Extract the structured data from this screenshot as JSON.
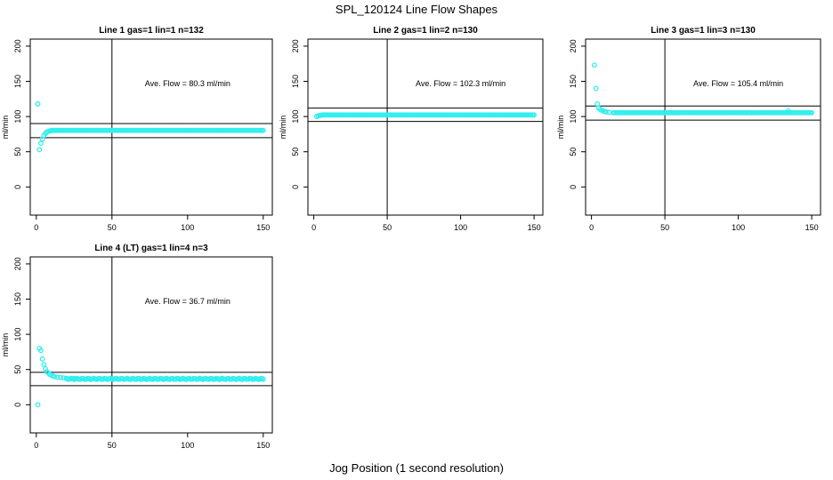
{
  "title": "SPL_120124  Line Flow Shapes",
  "x_caption": "Jog Position (1 second resolution)",
  "colors": {
    "points": "#33eeee",
    "lines": "#000000"
  },
  "chart_data": [
    {
      "type": "scatter",
      "title": "Line 1 gas=1 lin=1 n=132",
      "ylabel": "ml/min",
      "annotation": "Ave. Flow =  80.3  ml/min",
      "xlim": [
        -4,
        156
      ],
      "ylim": [
        -40,
        210
      ],
      "xticks": [
        0,
        50,
        100,
        150
      ],
      "yticks": [
        0,
        50,
        100,
        150,
        200
      ],
      "hlines": [
        90,
        70
      ],
      "vline": 50,
      "points": [
        [
          1,
          118
        ],
        [
          2,
          53
        ],
        [
          3,
          62
        ],
        [
          4,
          68
        ],
        [
          5,
          73
        ],
        [
          6,
          76
        ],
        [
          7,
          78
        ],
        [
          8,
          79
        ],
        [
          9,
          79.5
        ],
        [
          10,
          80
        ],
        [
          12,
          80.2
        ],
        [
          15,
          80.3
        ],
        [
          20,
          80.3
        ],
        [
          30,
          80.3
        ],
        [
          40,
          80.3
        ],
        [
          60,
          80.3
        ],
        [
          80,
          80.3
        ],
        [
          100,
          80.3
        ],
        [
          120,
          80.3
        ],
        [
          140,
          80.3
        ],
        [
          149,
          80.3
        ]
      ],
      "plateau": {
        "from": 10,
        "to": 150,
        "y": 80.3
      }
    },
    {
      "type": "scatter",
      "title": "Line 2 gas=1 lin=2 n=130",
      "ylabel": "ml/min",
      "annotation": "Ave. Flow =  102.3  ml/min",
      "xlim": [
        -4,
        156
      ],
      "ylim": [
        -40,
        210
      ],
      "xticks": [
        0,
        50,
        100,
        150
      ],
      "yticks": [
        0,
        50,
        100,
        150,
        200
      ],
      "hlines": [
        112,
        93
      ],
      "vline": 50,
      "points": [
        [
          2,
          100
        ],
        [
          3,
          101
        ],
        [
          4,
          101.5
        ],
        [
          5,
          102
        ],
        [
          6,
          102.2
        ],
        [
          8,
          102.3
        ],
        [
          149,
          102.3
        ]
      ],
      "plateau": {
        "from": 6,
        "to": 150,
        "y": 102.3
      }
    },
    {
      "type": "scatter",
      "title": "Line 3 gas=1 lin=3 n=130",
      "ylabel": "ml/min",
      "annotation": "Ave. Flow =  105.4  ml/min",
      "xlim": [
        -4,
        156
      ],
      "ylim": [
        -40,
        210
      ],
      "xticks": [
        0,
        50,
        100,
        150
      ],
      "yticks": [
        0,
        50,
        100,
        150,
        200
      ],
      "hlines": [
        115,
        95
      ],
      "vline": 50,
      "points": [
        [
          2,
          173
        ],
        [
          3,
          140
        ],
        [
          4,
          118
        ],
        [
          5,
          112
        ],
        [
          6,
          110
        ],
        [
          7,
          109
        ],
        [
          8,
          108
        ],
        [
          9,
          107
        ],
        [
          10,
          106.5
        ],
        [
          12,
          106
        ],
        [
          15,
          105.6
        ],
        [
          134,
          108
        ],
        [
          149,
          105.4
        ]
      ],
      "plateau": {
        "from": 15,
        "to": 150,
        "y": 105.4
      }
    },
    {
      "type": "scatter",
      "title": "Line 4 (LT) gas=1 lin=4 n=3",
      "ylabel": "ml/min",
      "annotation": "Ave. Flow =  36.7  ml/min",
      "xlim": [
        -4,
        156
      ],
      "ylim": [
        -40,
        210
      ],
      "xticks": [
        0,
        50,
        100,
        150
      ],
      "yticks": [
        0,
        50,
        100,
        150,
        200
      ],
      "hlines": [
        46,
        27
      ],
      "vline": 50,
      "points": [
        [
          1,
          0
        ],
        [
          2,
          80
        ],
        [
          3,
          77
        ],
        [
          4,
          65
        ],
        [
          5,
          57
        ],
        [
          6,
          51
        ],
        [
          7,
          47
        ],
        [
          8,
          45
        ],
        [
          9,
          43
        ],
        [
          10,
          42
        ],
        [
          11,
          41
        ],
        [
          12,
          40
        ],
        [
          14,
          39
        ],
        [
          16,
          38.5
        ],
        [
          18,
          38
        ],
        [
          20,
          37.5
        ],
        [
          25,
          37.2
        ],
        [
          149,
          36.7
        ]
      ],
      "plateau": {
        "from": 20,
        "to": 150,
        "y": 36.7,
        "jitter": 0.8
      }
    }
  ]
}
